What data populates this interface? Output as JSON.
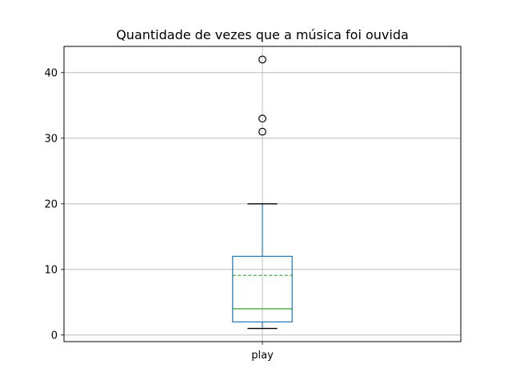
{
  "chart_data": {
    "type": "box",
    "title": "Quantidade de vezes que a música foi ouvida",
    "categories": [
      "play"
    ],
    "xlabel": "",
    "ylabel": "",
    "ylim": [
      -1,
      44
    ],
    "yticks": [
      0,
      10,
      20,
      30,
      40
    ],
    "grid": true,
    "boxes": [
      {
        "label": "play",
        "whisker_low": 1,
        "q1": 2,
        "median": 4,
        "mean": 9.1,
        "q3": 12,
        "whisker_high": 20,
        "outliers": [
          31,
          33,
          42
        ]
      }
    ],
    "colors": {
      "box": "#1f77b4",
      "median": "#2ca02c",
      "mean": "#2ca02c",
      "caps": "#000000",
      "outlier": "#000000",
      "grid": "#b0b0b0"
    }
  }
}
